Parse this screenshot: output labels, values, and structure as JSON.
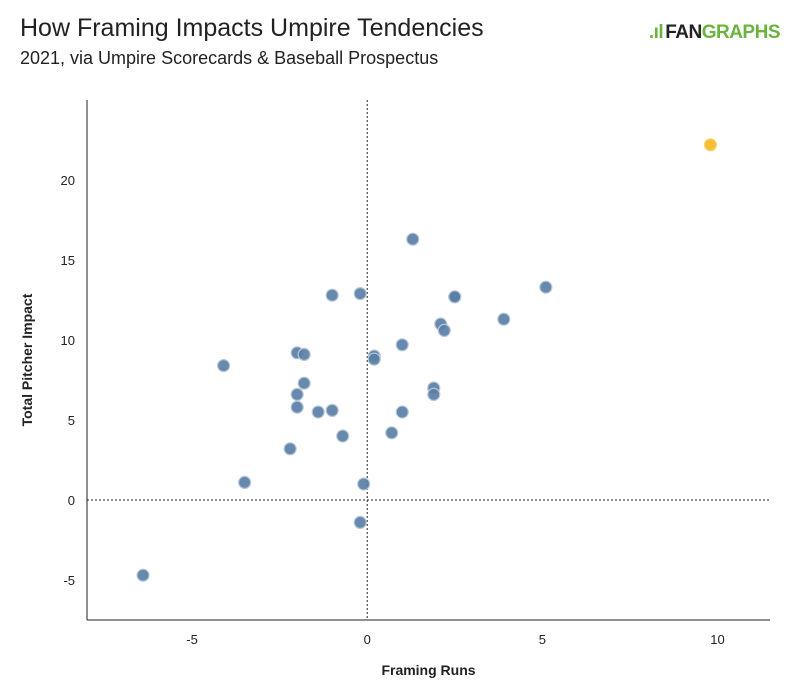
{
  "header": {
    "title": "How Framing Impacts Umpire Tendencies",
    "subtitle": "2021, via Umpire Scorecards & Baseball Prospectus",
    "logo_fan": "FAN",
    "logo_graphs": "GRAPHS"
  },
  "colors": {
    "point": "#5a7fa6",
    "point_stroke": "#b9c8d8",
    "highlight": "#f5b820",
    "axis": "#222222"
  },
  "chart_data": {
    "type": "scatter",
    "title": "How Framing Impacts Umpire Tendencies",
    "subtitle": "2021, via Umpire Scorecards & Baseball Prospectus",
    "xlabel": "Framing Runs",
    "ylabel": "Total Pitcher Impact",
    "xlim": [
      -8,
      11.5
    ],
    "ylim": [
      -7.5,
      25
    ],
    "xticks": [
      -5,
      0,
      5,
      10
    ],
    "yticks": [
      -5,
      0,
      5,
      10,
      15,
      20
    ],
    "reference_lines": {
      "x": 0,
      "y": 0,
      "style": "dotted"
    },
    "grid": false,
    "points": [
      {
        "x": 9.8,
        "y": 22.2,
        "highlight": true
      },
      {
        "x": 1.3,
        "y": 16.3
      },
      {
        "x": 5.1,
        "y": 13.3
      },
      {
        "x": -1.0,
        "y": 12.8
      },
      {
        "x": -0.2,
        "y": 12.9
      },
      {
        "x": 2.5,
        "y": 12.7
      },
      {
        "x": 2.5,
        "y": 12.7
      },
      {
        "x": 3.9,
        "y": 11.3
      },
      {
        "x": 2.1,
        "y": 11.0
      },
      {
        "x": 2.2,
        "y": 10.6
      },
      {
        "x": 1.0,
        "y": 9.7
      },
      {
        "x": -2.0,
        "y": 9.2
      },
      {
        "x": -1.8,
        "y": 9.1
      },
      {
        "x": 0.2,
        "y": 9.0
      },
      {
        "x": 0.2,
        "y": 8.8
      },
      {
        "x": -4.1,
        "y": 8.4
      },
      {
        "x": -1.8,
        "y": 7.3
      },
      {
        "x": 1.9,
        "y": 7.0
      },
      {
        "x": 1.9,
        "y": 6.6
      },
      {
        "x": -2.0,
        "y": 6.6
      },
      {
        "x": -2.0,
        "y": 5.8
      },
      {
        "x": -1.4,
        "y": 5.5
      },
      {
        "x": -1.0,
        "y": 5.6
      },
      {
        "x": 1.0,
        "y": 5.5
      },
      {
        "x": 0.7,
        "y": 4.2
      },
      {
        "x": -0.7,
        "y": 4.0
      },
      {
        "x": -2.2,
        "y": 3.2
      },
      {
        "x": -3.5,
        "y": 1.1
      },
      {
        "x": -0.1,
        "y": 1.0
      },
      {
        "x": -0.2,
        "y": -1.4
      },
      {
        "x": -6.4,
        "y": -4.7
      }
    ]
  }
}
